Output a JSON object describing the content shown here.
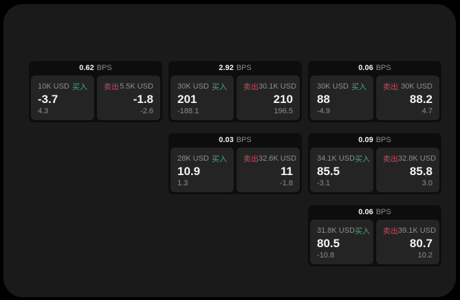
{
  "window": {
    "outside_background": "#000000",
    "background": "#1a1a1a"
  },
  "colors": {
    "buy_green": "#3bb273",
    "sell_red": "#c9485e",
    "card_bg": "#0d0d0d",
    "panel_bg": "#242424",
    "text_primary": "#f5f5f5",
    "text_muted": "#8f8f8f"
  },
  "labels": {
    "buy": "买入",
    "sell": "卖出",
    "bps_unit": "BPS"
  },
  "cards": [
    {
      "col": 1,
      "row": 1,
      "bps": "0.62",
      "buy": {
        "amount": "10K USD",
        "price": "-3.7",
        "change": "4.3"
      },
      "sell": {
        "amount": "5.5K USD",
        "price": "-1.8",
        "change": "-2.6"
      }
    },
    {
      "col": 2,
      "row": 1,
      "bps": "2.92",
      "buy": {
        "amount": "30K USD",
        "price": "201",
        "change": "-188.1"
      },
      "sell": {
        "amount": "30.1K USD",
        "price": "210",
        "change": "196.5"
      }
    },
    {
      "col": 3,
      "row": 1,
      "bps": "0.06",
      "buy": {
        "amount": "30K USD",
        "price": "88",
        "change": "-4.9"
      },
      "sell": {
        "amount": "30K USD",
        "price": "88.2",
        "change": "4.7"
      }
    },
    {
      "col": 2,
      "row": 2,
      "bps": "0.03",
      "buy": {
        "amount": "28K USD",
        "price": "10.9",
        "change": "1.3"
      },
      "sell": {
        "amount": "32.6K USD",
        "price": "11",
        "change": "-1.8"
      }
    },
    {
      "col": 3,
      "row": 2,
      "bps": "0.09",
      "buy": {
        "amount": "34.1K USD",
        "price": "85.5",
        "change": "-3.1"
      },
      "sell": {
        "amount": "32.8K USD",
        "price": "85.8",
        "change": "3.0"
      }
    },
    {
      "col": 3,
      "row": 3,
      "bps": "0.06",
      "buy": {
        "amount": "31.8K USD",
        "price": "80.5",
        "change": "-10.8"
      },
      "sell": {
        "amount": "39.1K USD",
        "price": "80.7",
        "change": "10.2"
      }
    }
  ]
}
